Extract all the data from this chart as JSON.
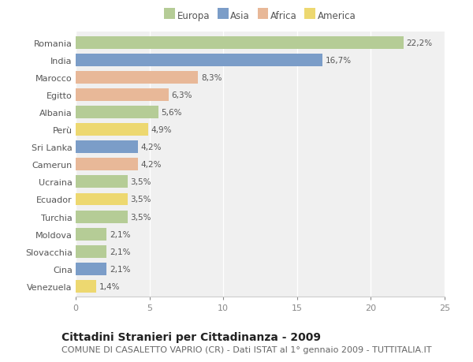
{
  "countries": [
    "Romania",
    "India",
    "Marocco",
    "Egitto",
    "Albania",
    "Perù",
    "Sri Lanka",
    "Camerun",
    "Ucraina",
    "Ecuador",
    "Turchia",
    "Moldova",
    "Slovacchia",
    "Cina",
    "Venezuela"
  ],
  "values": [
    22.2,
    16.7,
    8.3,
    6.3,
    5.6,
    4.9,
    4.2,
    4.2,
    3.5,
    3.5,
    3.5,
    2.1,
    2.1,
    2.1,
    1.4
  ],
  "labels": [
    "22,2%",
    "16,7%",
    "8,3%",
    "6,3%",
    "5,6%",
    "4,9%",
    "4,2%",
    "4,2%",
    "3,5%",
    "3,5%",
    "3,5%",
    "2,1%",
    "2,1%",
    "2,1%",
    "1,4%"
  ],
  "continents": [
    "Europa",
    "Asia",
    "Africa",
    "Africa",
    "Europa",
    "America",
    "Asia",
    "Africa",
    "Europa",
    "America",
    "Europa",
    "Europa",
    "Europa",
    "Asia",
    "America"
  ],
  "colors": {
    "Europa": "#b5cc96",
    "Asia": "#7b9dc8",
    "Africa": "#e8b898",
    "America": "#edd870"
  },
  "legend_order": [
    "Europa",
    "Asia",
    "Africa",
    "America"
  ],
  "xlim": [
    0,
    25
  ],
  "xticks": [
    0,
    5,
    10,
    15,
    20,
    25
  ],
  "title": "Cittadini Stranieri per Cittadinanza - 2009",
  "subtitle": "COMUNE DI CASALETTO VAPRIO (CR) - Dati ISTAT al 1° gennaio 2009 - TUTTITALIA.IT",
  "background_color": "#ffffff",
  "plot_bg_color": "#f0f0f0",
  "grid_color": "#ffffff",
  "bar_height": 0.72,
  "title_fontsize": 10,
  "subtitle_fontsize": 8,
  "label_fontsize": 7.5,
  "tick_fontsize": 8,
  "legend_fontsize": 8.5
}
